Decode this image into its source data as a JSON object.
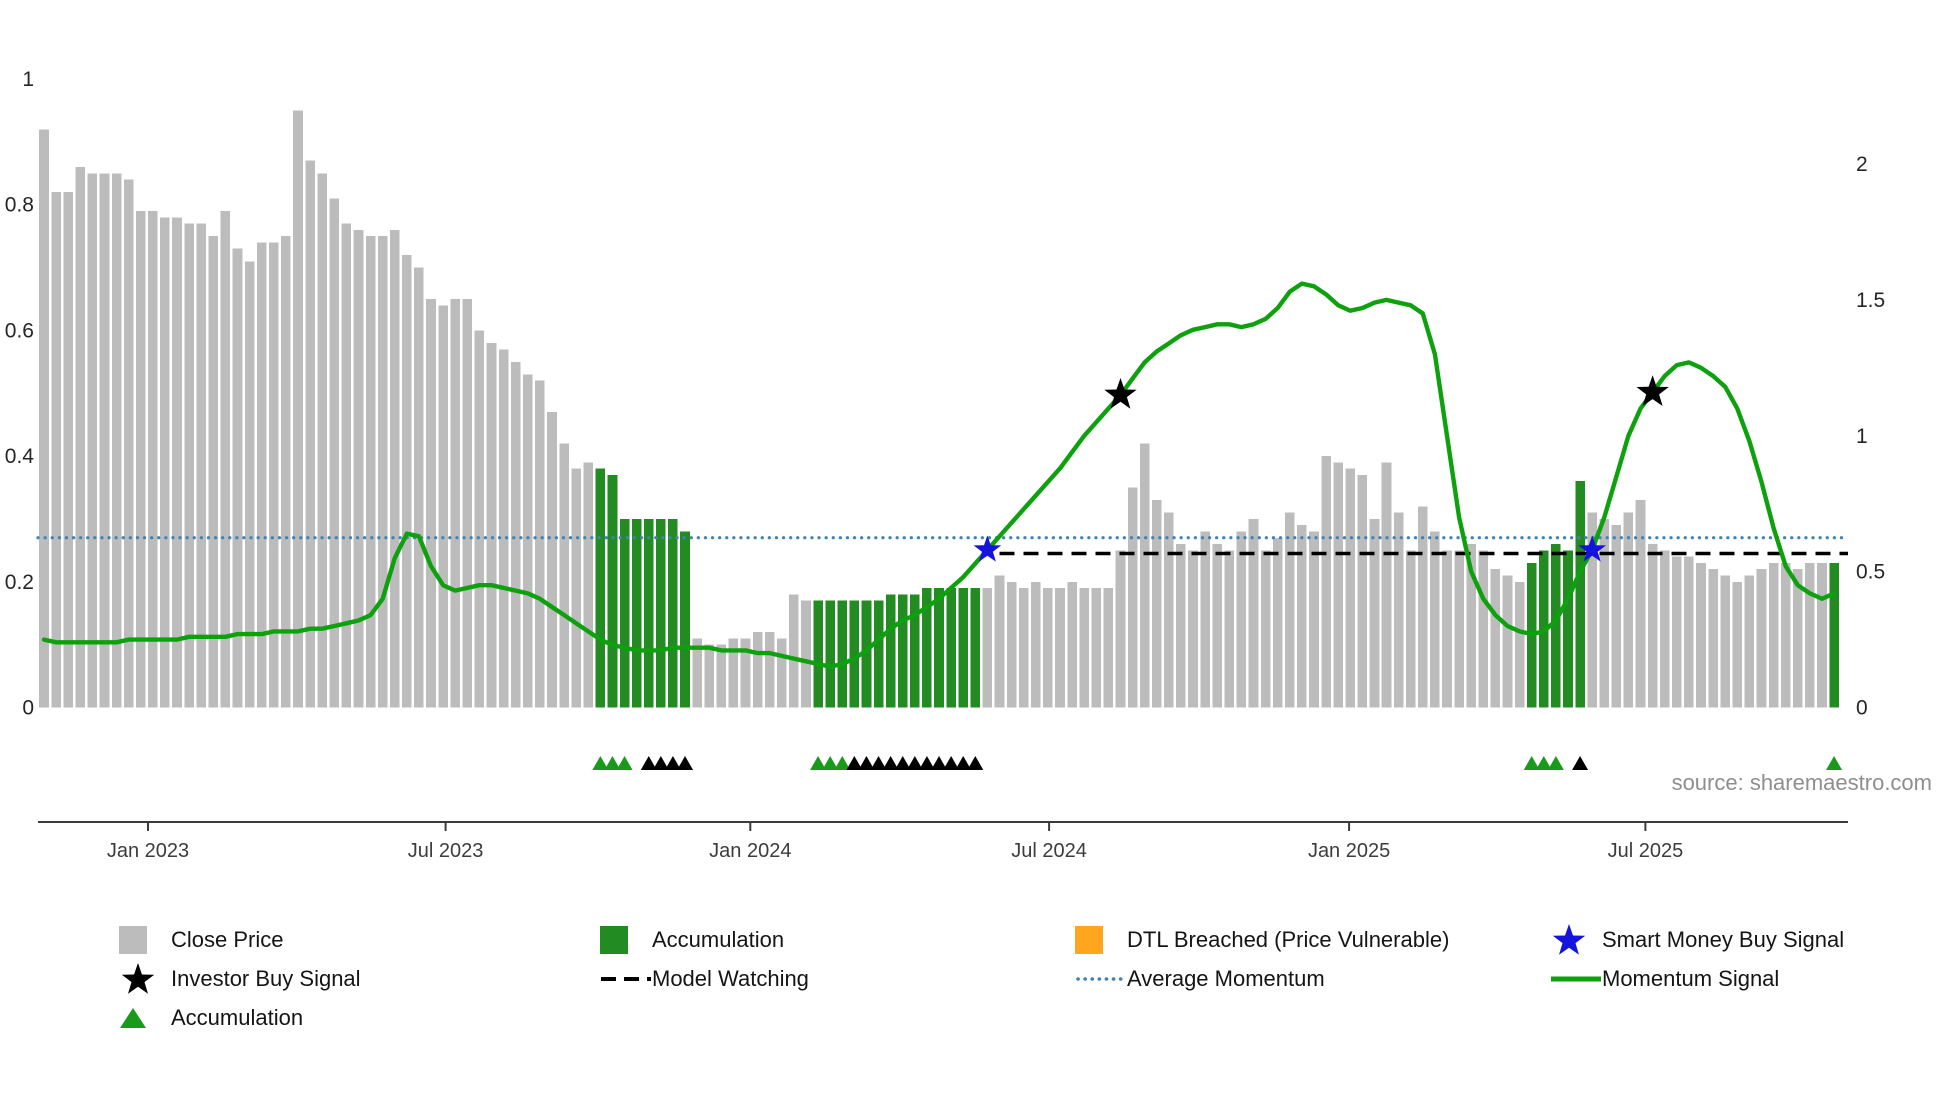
{
  "page": {
    "source_credit": "source: sharemaestro.com"
  },
  "chart_data": {
    "type": "bar+line",
    "title": "",
    "colors": {
      "close_price": "#bcbcbc",
      "accumulation": "#228B22",
      "momentum": "#0da10d",
      "average_momentum": "#3f84b5",
      "model_watching": "#000000",
      "investor_buy_signal": "#000000",
      "smart_money_buy_signal": "#1414dd",
      "dtl_breached": "#ffa51e",
      "accumulation_marker_green": "#1a9a1a",
      "accumulation_marker_black": "#000000"
    },
    "left_axis": {
      "ticks": [
        {
          "label": "0",
          "value": 0
        },
        {
          "label": "0.2",
          "value": 0.2
        },
        {
          "label": "0.4",
          "value": 0.4
        },
        {
          "label": "0.6",
          "value": 0.6
        },
        {
          "label": "0.8",
          "value": 0.8
        },
        {
          "label": "1",
          "value": 1
        }
      ],
      "range": [
        0,
        1.05
      ]
    },
    "right_axis": {
      "ticks": [
        {
          "label": "0",
          "value": 0
        },
        {
          "label": "0.5",
          "value": 0.5
        },
        {
          "label": "1",
          "value": 1
        },
        {
          "label": "1.5",
          "value": 1.5
        },
        {
          "label": "2",
          "value": 2
        }
      ],
      "range": [
        0,
        2.35
      ]
    },
    "x_axis": {
      "labels": [
        {
          "label": "Jan 2023",
          "index": 8.6
        },
        {
          "label": "Jul 2023",
          "index": 33.2
        },
        {
          "label": "Jan 2024",
          "index": 58.4
        },
        {
          "label": "Jul 2024",
          "index": 83.1
        },
        {
          "label": "Jan 2025",
          "index": 107.9
        },
        {
          "label": "Jul 2025",
          "index": 132.4
        }
      ]
    },
    "bars": {
      "name": "Close Price",
      "axis": "left",
      "values": [
        0.92,
        0.82,
        0.82,
        0.86,
        0.85,
        0.85,
        0.85,
        0.84,
        0.79,
        0.79,
        0.78,
        0.78,
        0.77,
        0.77,
        0.75,
        0.79,
        0.73,
        0.71,
        0.74,
        0.74,
        0.75,
        0.95,
        0.87,
        0.85,
        0.81,
        0.77,
        0.76,
        0.75,
        0.75,
        0.76,
        0.72,
        0.7,
        0.65,
        0.64,
        0.65,
        0.65,
        0.6,
        0.58,
        0.57,
        0.55,
        0.53,
        0.52,
        0.47,
        0.42,
        0.38,
        0.39,
        0.38,
        0.37,
        0.3,
        0.3,
        0.3,
        0.3,
        0.3,
        0.28,
        0.11,
        0.1,
        0.1,
        0.11,
        0.11,
        0.12,
        0.12,
        0.11,
        0.18,
        0.17,
        0.17,
        0.17,
        0.17,
        0.17,
        0.17,
        0.17,
        0.18,
        0.18,
        0.18,
        0.19,
        0.19,
        0.19,
        0.19,
        0.19,
        0.19,
        0.21,
        0.2,
        0.19,
        0.2,
        0.19,
        0.19,
        0.2,
        0.19,
        0.19,
        0.19,
        0.25,
        0.35,
        0.42,
        0.33,
        0.31,
        0.26,
        0.25,
        0.28,
        0.26,
        0.25,
        0.28,
        0.3,
        0.25,
        0.27,
        0.31,
        0.29,
        0.28,
        0.4,
        0.39,
        0.38,
        0.37,
        0.3,
        0.39,
        0.31,
        0.25,
        0.32,
        0.28,
        0.25,
        0.25,
        0.26,
        0.25,
        0.22,
        0.21,
        0.2,
        0.23,
        0.25,
        0.26,
        0.25,
        0.36,
        0.31,
        0.3,
        0.29,
        0.31,
        0.33,
        0.26,
        0.25,
        0.24,
        0.24,
        0.23,
        0.22,
        0.21,
        0.2,
        0.21,
        0.22,
        0.23,
        0.23,
        0.22,
        0.23,
        0.23,
        0.23
      ],
      "accumulation_ranges": [
        [
          46,
          53
        ],
        [
          64,
          77
        ],
        [
          123,
          127
        ],
        [
          148,
          148
        ]
      ]
    },
    "momentum": {
      "name": "Momentum Signal",
      "axis": "right",
      "values": [
        0.25,
        0.24,
        0.24,
        0.24,
        0.24,
        0.24,
        0.24,
        0.25,
        0.25,
        0.25,
        0.25,
        0.25,
        0.26,
        0.26,
        0.26,
        0.26,
        0.27,
        0.27,
        0.27,
        0.28,
        0.28,
        0.28,
        0.29,
        0.29,
        0.3,
        0.31,
        0.32,
        0.34,
        0.4,
        0.55,
        0.64,
        0.63,
        0.52,
        0.45,
        0.43,
        0.44,
        0.45,
        0.45,
        0.44,
        0.43,
        0.42,
        0.4,
        0.37,
        0.34,
        0.31,
        0.28,
        0.25,
        0.23,
        0.22,
        0.21,
        0.21,
        0.21,
        0.22,
        0.22,
        0.22,
        0.22,
        0.21,
        0.21,
        0.21,
        0.2,
        0.2,
        0.19,
        0.18,
        0.17,
        0.16,
        0.15,
        0.16,
        0.18,
        0.21,
        0.25,
        0.29,
        0.32,
        0.34,
        0.37,
        0.4,
        0.44,
        0.48,
        0.53,
        0.58,
        0.63,
        0.68,
        0.73,
        0.78,
        0.83,
        0.88,
        0.94,
        1.0,
        1.05,
        1.1,
        1.15,
        1.21,
        1.27,
        1.31,
        1.34,
        1.37,
        1.39,
        1.4,
        1.41,
        1.41,
        1.4,
        1.41,
        1.43,
        1.47,
        1.53,
        1.56,
        1.55,
        1.52,
        1.48,
        1.46,
        1.47,
        1.49,
        1.5,
        1.49,
        1.48,
        1.45,
        1.3,
        1.0,
        0.7,
        0.5,
        0.4,
        0.34,
        0.3,
        0.28,
        0.27,
        0.28,
        0.32,
        0.4,
        0.5,
        0.58,
        0.7,
        0.85,
        1.0,
        1.1,
        1.16,
        1.22,
        1.26,
        1.27,
        1.25,
        1.22,
        1.18,
        1.1,
        0.98,
        0.83,
        0.66,
        0.52,
        0.45,
        0.42,
        0.4,
        0.42
      ]
    },
    "average_momentum": {
      "name": "Average Momentum",
      "axis": "right",
      "value": 0.625
    },
    "model_watching": {
      "name": "Model Watching",
      "axis": "left",
      "value": 0.245,
      "start_index": 79
    },
    "investor_buy_signals": [
      {
        "index": 89,
        "value": 1.15
      },
      {
        "index": 133,
        "value": 1.16
      }
    ],
    "smart_money_buy_signals": [
      {
        "index": 78,
        "value": 0.58
      },
      {
        "index": 128,
        "value": 0.58
      }
    ],
    "accumulation_markers": {
      "green": [
        46,
        47,
        48,
        64,
        65,
        66,
        123,
        124,
        125,
        148
      ],
      "black": [
        50,
        51,
        52,
        53,
        67,
        68,
        69,
        70,
        71,
        72,
        73,
        74,
        75,
        76,
        77,
        127
      ]
    }
  },
  "legend": {
    "items": [
      {
        "label": "Close Price",
        "swatch": "square",
        "color": "#bcbcbc"
      },
      {
        "label": "Accumulation",
        "swatch": "square",
        "color": "#228B22"
      },
      {
        "label": "DTL Breached (Price Vulnerable)",
        "swatch": "square",
        "color": "#ffa51e"
      },
      {
        "label": "Smart Money Buy Signal",
        "swatch": "star",
        "color": "#1414dd"
      },
      {
        "label": "Investor Buy Signal",
        "swatch": "star",
        "color": "#000000"
      },
      {
        "label": "Model Watching",
        "swatch": "dashed-line",
        "color": "#000000"
      },
      {
        "label": "Average Momentum",
        "swatch": "dotted-line",
        "color": "#3f84b5"
      },
      {
        "label": "Momentum Signal",
        "swatch": "line",
        "color": "#0da10d"
      },
      {
        "label": "Accumulation",
        "swatch": "triangle",
        "color": "#1a9a1a"
      }
    ]
  }
}
